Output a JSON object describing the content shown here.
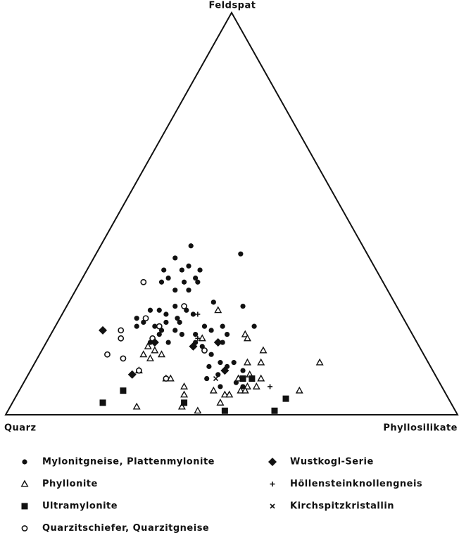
{
  "chart_data": {
    "type": "ternary",
    "top_label": "Feldspat",
    "left_label": "Quarz",
    "right_label": "Phyllosilikate",
    "component_order": [
      "Quarz",
      "Feldspat",
      "Phyllosilikate"
    ],
    "color": "#111111",
    "series": [
      {
        "name": "Mylonitgneise, Plattenmylonite",
        "marker": "filled-circle",
        "values": [
          [
            38,
            42,
            20
          ],
          [
            28,
            40,
            32
          ],
          [
            43,
            39,
            18
          ],
          [
            41,
            37,
            22
          ],
          [
            47,
            36,
            17
          ],
          [
            43,
            36,
            21
          ],
          [
            39,
            36,
            25
          ],
          [
            47,
            34,
            19
          ],
          [
            41,
            34,
            25
          ],
          [
            44,
            33,
            23
          ],
          [
            41,
            33,
            26
          ],
          [
            49,
            33,
            18
          ],
          [
            47,
            31,
            22
          ],
          [
            44,
            31,
            25
          ],
          [
            40,
            28,
            32
          ],
          [
            34,
            27,
            39
          ],
          [
            55,
            26,
            19
          ],
          [
            53,
            26,
            21
          ],
          [
            49,
            27,
            24
          ],
          [
            47,
            26,
            27
          ],
          [
            46,
            25,
            29
          ],
          [
            52,
            25,
            23
          ],
          [
            50,
            24,
            26
          ],
          [
            59,
            24,
            17
          ],
          [
            58,
            23,
            19
          ],
          [
            56,
            22,
            22
          ],
          [
            53,
            23,
            24
          ],
          [
            50,
            23,
            27
          ],
          [
            45,
            22,
            33
          ],
          [
            41,
            22,
            37
          ],
          [
            55,
            21,
            24
          ],
          [
            52,
            21,
            27
          ],
          [
            51,
            20,
            29
          ],
          [
            48,
            20,
            32
          ],
          [
            44,
            21,
            35
          ],
          [
            34,
            22,
            44
          ],
          [
            60,
            22,
            18
          ],
          [
            55,
            18,
            27
          ],
          [
            49,
            18,
            33
          ],
          [
            50,
            17,
            33
          ],
          [
            48,
            17,
            35
          ],
          [
            43,
            18,
            39
          ],
          [
            41,
            20,
            39
          ],
          [
            47,
            15,
            38
          ],
          [
            49,
            12,
            39
          ],
          [
            46,
            13,
            41
          ],
          [
            45,
            12,
            43
          ],
          [
            51,
            9,
            40
          ],
          [
            48,
            10,
            42
          ],
          [
            43,
            13,
            44
          ],
          [
            42,
            11,
            47
          ],
          [
            45,
            8,
            47
          ],
          [
            49,
            7,
            44
          ],
          [
            44,
            7,
            49
          ],
          [
            59,
            18,
            23
          ],
          [
            56,
            20,
            24
          ]
        ]
      },
      {
        "name": "Phyllonite",
        "marker": "open-triangle",
        "values": [
          [
            40,
            26,
            34
          ],
          [
            37,
            20,
            43
          ],
          [
            37,
            19,
            44
          ],
          [
            47,
            19,
            34
          ],
          [
            35,
            16,
            49
          ],
          [
            40,
            13,
            47
          ],
          [
            37,
            13,
            50
          ],
          [
            24,
            13,
            63
          ],
          [
            60,
            17,
            23
          ],
          [
            59,
            16,
            25
          ],
          [
            62,
            15,
            23
          ],
          [
            61,
            14,
            25
          ],
          [
            58,
            15,
            27
          ],
          [
            65,
            11,
            24
          ],
          [
            60,
            9,
            31
          ],
          [
            59,
            9,
            32
          ],
          [
            57,
            7,
            36
          ],
          [
            58,
            5,
            37
          ],
          [
            60,
            2,
            38
          ],
          [
            70,
            2,
            28
          ],
          [
            57,
            1,
            42
          ],
          [
            51,
            6,
            43
          ],
          [
            49,
            5,
            46
          ],
          [
            51,
            3,
            46
          ],
          [
            48,
            5,
            47
          ],
          [
            44,
            9,
            47
          ],
          [
            41,
            10,
            49
          ],
          [
            43,
            7,
            50
          ],
          [
            45,
            6,
            49
          ],
          [
            44,
            6,
            50
          ],
          [
            41,
            7,
            52
          ],
          [
            39,
            9,
            52
          ],
          [
            32,
            6,
            62
          ]
        ]
      },
      {
        "name": "Ultramylonite",
        "marker": "filled-square",
        "values": [
          [
            77,
            3,
            20
          ],
          [
            71,
            6,
            23
          ],
          [
            59,
            3,
            38
          ],
          [
            51,
            1,
            48
          ],
          [
            43,
            9,
            48
          ],
          [
            41,
            9,
            50
          ],
          [
            40,
            1,
            59
          ],
          [
            36,
            4,
            60
          ]
        ]
      },
      {
        "name": "Quarzitschiefer, Quarzitgneise",
        "marker": "open-circle",
        "values": [
          [
            53,
            33,
            14
          ],
          [
            57,
            24,
            19
          ],
          [
            64,
            21,
            15
          ],
          [
            65,
            19,
            16
          ],
          [
            70,
            15,
            15
          ],
          [
            67,
            14,
            19
          ],
          [
            47,
            27,
            26
          ],
          [
            48,
            16,
            36
          ],
          [
            58,
            19,
            23
          ],
          [
            55,
            22,
            23
          ],
          [
            65,
            11,
            24
          ],
          [
            60,
            9,
            31
          ]
        ]
      },
      {
        "name": "Wustkogl-Serie",
        "marker": "filled-diamond",
        "values": [
          [
            68,
            21,
            11
          ],
          [
            58,
            18,
            24
          ],
          [
            67,
            10,
            23
          ],
          [
            50,
            17,
            33
          ],
          [
            44,
            18,
            38
          ],
          [
            46,
            11,
            43
          ]
        ]
      },
      {
        "name": "Höllensteinknollengneis",
        "marker": "plus",
        "values": [
          [
            45,
            25,
            30
          ],
          [
            48,
            19,
            33
          ],
          [
            38,
            7,
            55
          ]
        ]
      },
      {
        "name": "Kirchspitzkristallin",
        "marker": "cross",
        "values": [
          [
            49,
            9,
            42
          ]
        ]
      }
    ]
  }
}
